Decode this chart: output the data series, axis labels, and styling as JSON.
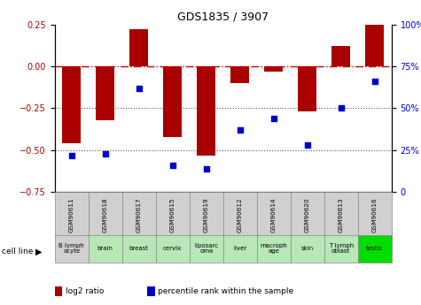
{
  "title": "GDS1835 / 3907",
  "samples": [
    "GSM90611",
    "GSM90618",
    "GSM90617",
    "GSM90615",
    "GSM90619",
    "GSM90612",
    "GSM90614",
    "GSM90620",
    "GSM90613",
    "GSM90616"
  ],
  "cell_lines": [
    "B lymph\nocyte",
    "brain",
    "breast",
    "cervix",
    "liposarc\noma",
    "liver",
    "macroph\nage",
    "skin",
    "T lymph\noblast",
    "testis"
  ],
  "cell_bg_colors": [
    "#d0d0d0",
    "#b8e8b8",
    "#b8e8b8",
    "#b8e8b8",
    "#b8e8b8",
    "#b8e8b8",
    "#b8e8b8",
    "#b8e8b8",
    "#b8e8b8",
    "#00dd00"
  ],
  "gsm_bg_color": "#d0d0d0",
  "log2_ratio": [
    -0.46,
    -0.32,
    0.22,
    -0.42,
    -0.53,
    -0.1,
    -0.03,
    -0.27,
    0.12,
    0.25
  ],
  "percentile_rank": [
    22,
    23,
    62,
    16,
    14,
    37,
    44,
    28,
    50,
    66
  ],
  "ylim_left": [
    -0.75,
    0.25
  ],
  "ylim_right": [
    0,
    100
  ],
  "left_yticks": [
    -0.75,
    -0.5,
    -0.25,
    0,
    0.25
  ],
  "right_yticks": [
    0,
    25,
    50,
    75,
    100
  ],
  "right_yticklabels": [
    "0",
    "25%",
    "50%",
    "75%",
    "100%"
  ],
  "bar_color": "#aa0000",
  "scatter_color": "#0000cc",
  "zero_line_color": "#cc0000",
  "dot_line_color": "#555555",
  "legend_bar_label": "log2 ratio",
  "legend_scatter_label": "percentile rank within the sample",
  "cell_line_label": "cell line",
  "title_fontsize": 9,
  "tick_fontsize": 7,
  "label_fontsize": 7
}
